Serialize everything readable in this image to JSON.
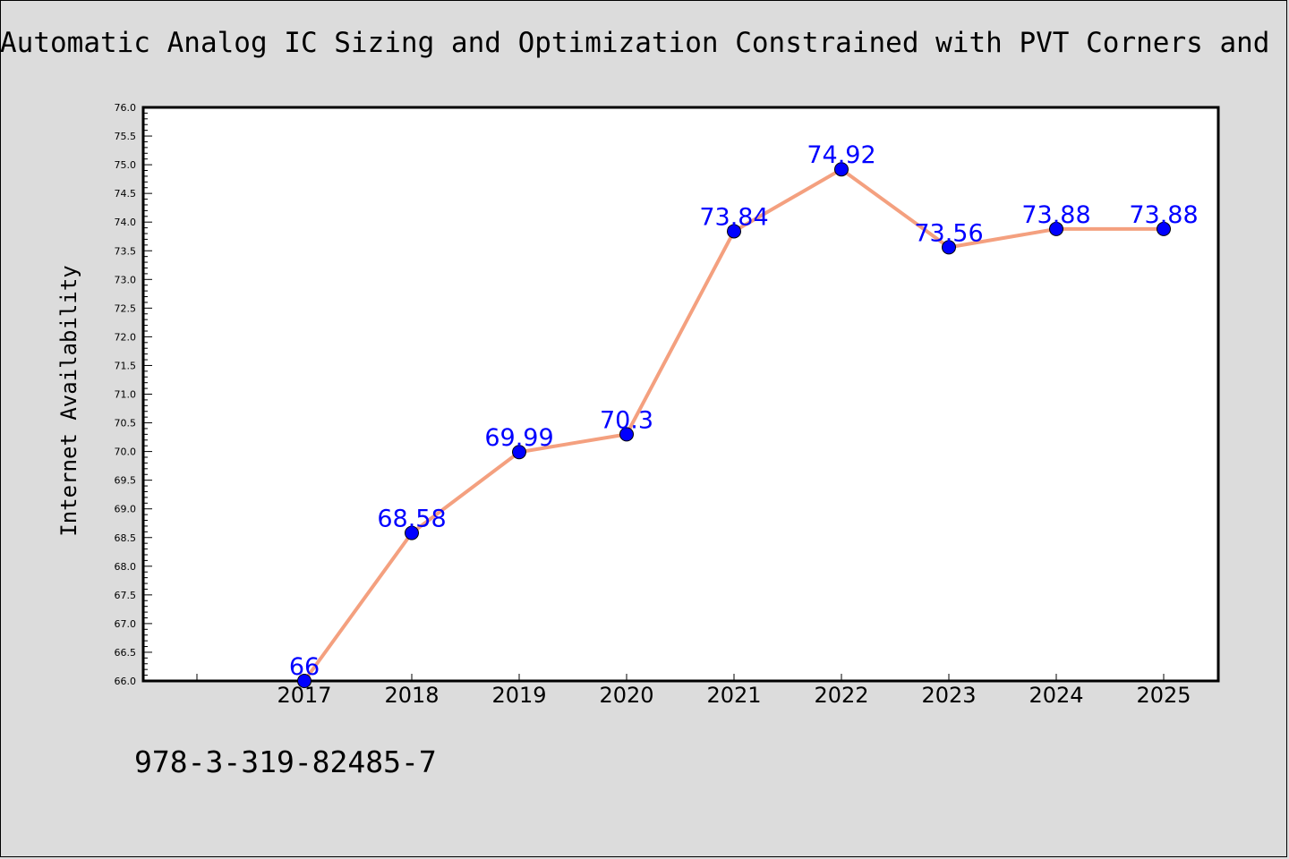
{
  "chart_title": "Automatic Analog IC Sizing and Optimization Constrained with PVT Corners and Layout Effects",
  "footer_text": "978-3-319-82485-7",
  "chart_data": {
    "type": "line",
    "title": "Automatic Analog IC Sizing and Optimization Constrained with PVT Corners and Layout Effects",
    "xlabel": "",
    "ylabel": "Internet Availability",
    "categories": [
      "2017",
      "2018",
      "2019",
      "2020",
      "2021",
      "2022",
      "2023",
      "2024",
      "2025"
    ],
    "series": [
      {
        "values": [
          66,
          68.58,
          69.99,
          70.3,
          73.84,
          74.92,
          73.56,
          73.88,
          73.88
        ],
        "labels": [
          "66",
          "68.58",
          "69.99",
          "70.3",
          "73.84",
          "74.92",
          "73.56",
          "73.88",
          "73.88"
        ]
      }
    ],
    "ylim": [
      66.0,
      76.0
    ],
    "y_ticks": [
      "66.0",
      "66.5",
      "67.0",
      "67.5",
      "68.0",
      "68.5",
      "69.0",
      "69.5",
      "70.0",
      "70.5",
      "71.0",
      "71.5",
      "72.0",
      "72.5",
      "73.0",
      "73.5",
      "74.0",
      "74.5",
      "75.0",
      "75.5",
      "76.0"
    ],
    "grid": false,
    "legend": "none",
    "colors": {
      "line": "#f4a07f",
      "marker": "#0000ff",
      "label": "#0000ff",
      "background": "#dcdcdc",
      "plot_background": "#ffffff"
    }
  }
}
